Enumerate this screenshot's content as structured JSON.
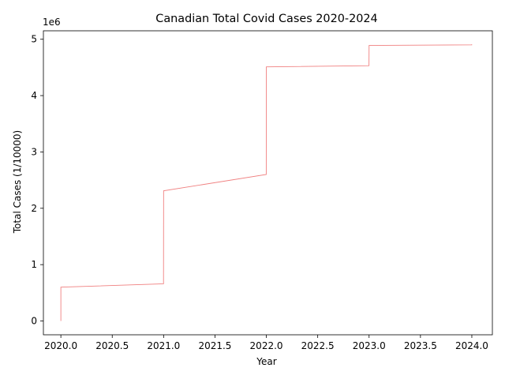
{
  "chart_data": {
    "type": "line",
    "title": "Canadian Total Covid Cases 2020-2024",
    "xlabel": "Year",
    "ylabel": "Total Cases (1/10000)",
    "y_scale_note": "1e6",
    "xlim": [
      2019.83,
      2024.2
    ],
    "ylim": [
      -245000,
      5150000
    ],
    "xticks": [
      2020.0,
      2020.5,
      2021.0,
      2021.5,
      2022.0,
      2022.5,
      2023.0,
      2023.5,
      2024.0
    ],
    "xtick_labels": [
      "2020.0",
      "2020.5",
      "2021.0",
      "2021.5",
      "2022.0",
      "2022.5",
      "2023.0",
      "2023.5",
      "2024.0"
    ],
    "yticks": [
      0,
      1000000,
      2000000,
      3000000,
      4000000,
      5000000
    ],
    "ytick_labels": [
      "0",
      "1",
      "2",
      "3",
      "4",
      "5"
    ],
    "grid": false,
    "legend": "none",
    "series": [
      {
        "color": "#f08080",
        "x": [
          2020.0,
          2020.0,
          2020.999,
          2021.0,
          2021.999,
          2022.0,
          2022.999,
          2023.0,
          2023.999,
          2024.0
        ],
        "y": [
          0,
          600000,
          660000,
          2310000,
          2600000,
          4510000,
          4530000,
          4890000,
          4900000,
          4910000
        ]
      }
    ]
  }
}
